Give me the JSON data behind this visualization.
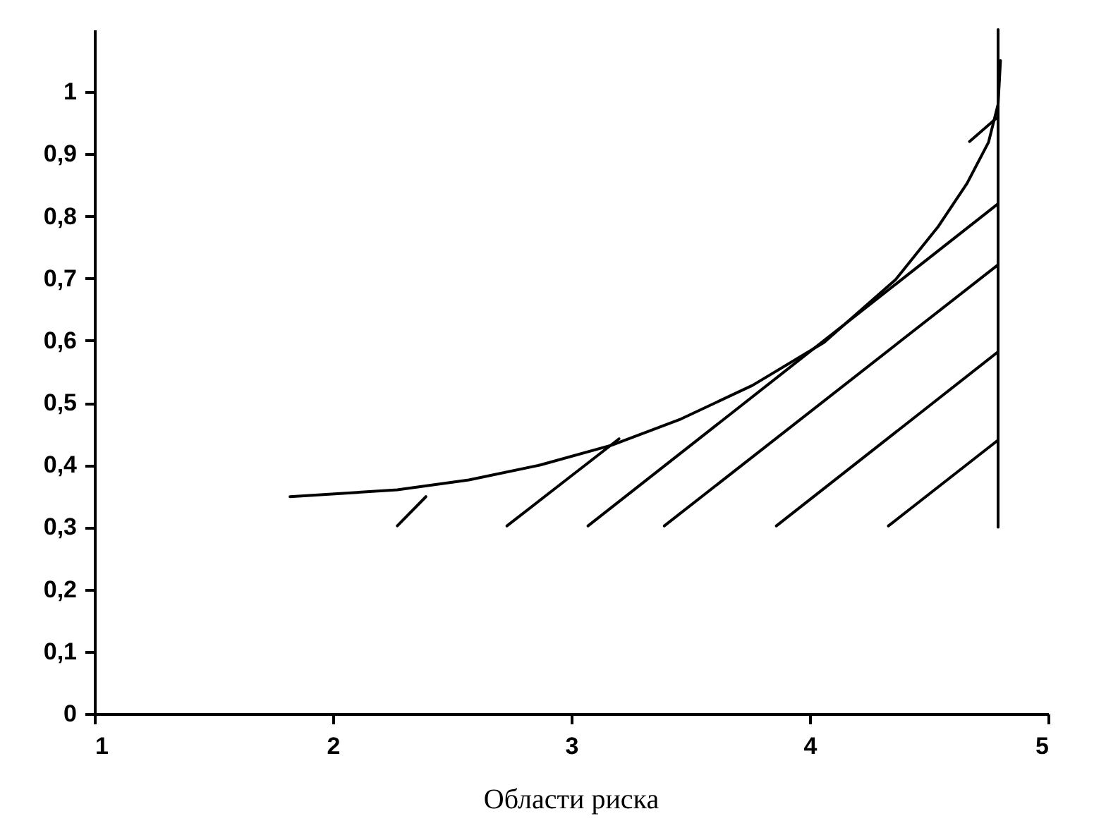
{
  "chart_data": {
    "type": "line",
    "annotations": [
      "Области риска"
    ],
    "xlim": [
      1,
      5
    ],
    "xticks": [
      1,
      2,
      3,
      4,
      5
    ],
    "ylim": [
      0,
      1.1
    ],
    "yticks": [
      0,
      {
        "value": 0.1,
        "label": "0,1"
      },
      {
        "value": 0.2,
        "label": "0,2"
      },
      {
        "value": 0.3,
        "label": "0,3"
      },
      {
        "value": 0.4,
        "label": "0,4"
      },
      {
        "value": 0.5,
        "label": "0,5"
      },
      {
        "value": 0.6,
        "label": "0,6"
      },
      {
        "value": 0.7,
        "label": "0,7"
      },
      {
        "value": 0.8,
        "label": "0,8"
      },
      {
        "value": 0.9,
        "label": "0,9"
      },
      1
    ],
    "grid": false,
    "legend": false,
    "marker": "none",
    "line_style": "solid",
    "series": [
      {
        "color": "#000000",
        "x": [
          1.82,
          2.27,
          2.57,
          2.87,
          3.17,
          3.46,
          3.76,
          4.06,
          4.36,
          4.54,
          4.66,
          4.75,
          4.79,
          4.8
        ],
        "values": [
          0.349,
          0.36,
          0.376,
          0.4,
          0.432,
          0.474,
          0.528,
          0.597,
          0.698,
          0.784,
          0.853,
          0.919,
          0.98,
          1.05
        ]
      },
      {
        "color": "#000000",
        "x": [
          4.79,
          4.79
        ],
        "values": [
          0.3,
          1.1
        ]
      },
      {
        "color": "#000000",
        "x": [
          2.27,
          2.39
        ],
        "values": [
          0.302,
          0.349
        ]
      },
      {
        "color": "#000000",
        "x": [
          2.73,
          3.2
        ],
        "values": [
          0.302,
          0.442
        ]
      },
      {
        "color": "#000000",
        "x": [
          3.07,
          4.79
        ],
        "values": [
          0.302,
          0.82
        ]
      },
      {
        "color": "#000000",
        "x": [
          3.39,
          4.79
        ],
        "values": [
          0.302,
          0.722
        ]
      },
      {
        "color": "#000000",
        "x": [
          3.86,
          4.79
        ],
        "values": [
          0.302,
          0.582
        ]
      },
      {
        "color": "#000000",
        "x": [
          4.33,
          4.79
        ],
        "values": [
          0.302,
          0.44
        ]
      },
      {
        "color": "#000000",
        "x": [
          4.67,
          4.79
        ],
        "values": [
          0.92,
          0.96
        ]
      }
    ]
  }
}
